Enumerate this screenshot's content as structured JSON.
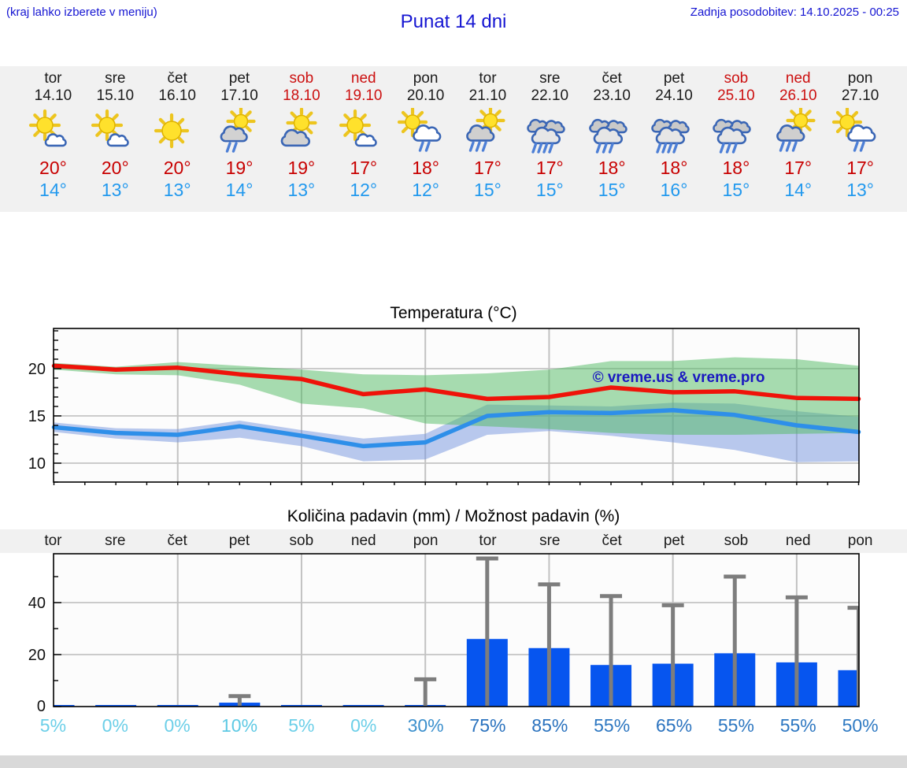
{
  "header": {
    "hint": "(kraj lahko izberete v meniju)",
    "title": "Punat 14 dni",
    "updated": "Zadnja posodobitev: 14.10.2025 - 00:25"
  },
  "colors": {
    "link_blue": "#1515d2",
    "high_red": "#c80000",
    "low_blue": "#2299ee",
    "weekend_red": "#cc1111",
    "text_black": "#1b1b1b",
    "strip_gray": "#f1f1f1",
    "bar_blue": "#0655ef",
    "whisker_gray": "#7d7d7d",
    "max_line_red": "#ef1309",
    "min_line_blue": "#2e8fe9",
    "watermark_blue": "#1a18c0"
  },
  "forecast": {
    "days": [
      {
        "name": "tor",
        "date": "14.10",
        "weekend": false,
        "icon": "sun-cloud",
        "high": "20°",
        "low": "14°"
      },
      {
        "name": "sre",
        "date": "15.10",
        "weekend": false,
        "icon": "sun-cloud",
        "high": "20°",
        "low": "13°"
      },
      {
        "name": "čet",
        "date": "16.10",
        "weekend": false,
        "icon": "sun",
        "high": "20°",
        "low": "13°"
      },
      {
        "name": "pet",
        "date": "17.10",
        "weekend": false,
        "icon": "sun-gray-cloud-rain-2",
        "high": "19°",
        "low": "14°"
      },
      {
        "name": "sob",
        "date": "18.10",
        "weekend": true,
        "icon": "sun-gray-cloud",
        "high": "19°",
        "low": "13°"
      },
      {
        "name": "ned",
        "date": "19.10",
        "weekend": true,
        "icon": "sun-cloud",
        "high": "17°",
        "low": "12°"
      },
      {
        "name": "pon",
        "date": "20.10",
        "weekend": false,
        "icon": "sun-cloud-rain-2",
        "high": "18°",
        "low": "12°"
      },
      {
        "name": "tor",
        "date": "21.10",
        "weekend": false,
        "icon": "sun-gray-cloud-rain-3",
        "high": "17°",
        "low": "15°"
      },
      {
        "name": "sre",
        "date": "22.10",
        "weekend": false,
        "icon": "clouds-rain-4",
        "high": "17°",
        "low": "15°"
      },
      {
        "name": "čet",
        "date": "23.10",
        "weekend": false,
        "icon": "clouds-rain-3",
        "high": "18°",
        "low": "15°"
      },
      {
        "name": "pet",
        "date": "24.10",
        "weekend": false,
        "icon": "clouds-rain-4",
        "high": "18°",
        "low": "16°"
      },
      {
        "name": "sob",
        "date": "25.10",
        "weekend": true,
        "icon": "clouds-rain-3",
        "high": "18°",
        "low": "15°"
      },
      {
        "name": "ned",
        "date": "26.10",
        "weekend": true,
        "icon": "sun-gray-cloud-rain-3",
        "high": "17°",
        "low": "14°"
      },
      {
        "name": "pon",
        "date": "27.10",
        "weekend": false,
        "icon": "sun-cloud-rain-2",
        "high": "17°",
        "low": "13°"
      }
    ]
  },
  "chart_data": [
    {
      "type": "line",
      "title": "Temperatura (°C)",
      "categories": [
        "tor 14.10",
        "sre 15.10",
        "čet 16.10",
        "pet 17.10",
        "sob 18.10",
        "ned 19.10",
        "pon 20.10",
        "tor 21.10",
        "sre 22.10",
        "čet 23.10",
        "pet 24.10",
        "sob 25.10",
        "ned 26.10",
        "pon 27.10"
      ],
      "series": [
        {
          "name": "max temperatura",
          "color": "#ef1309",
          "values": [
            20.3,
            19.9,
            20.1,
            19.4,
            18.9,
            17.3,
            17.8,
            16.8,
            17.0,
            18.0,
            17.5,
            17.6,
            16.9,
            16.8
          ]
        },
        {
          "name": "min temperatura",
          "color": "#2e8fe9",
          "values": [
            13.8,
            13.2,
            13.0,
            13.9,
            12.9,
            11.8,
            12.2,
            15.0,
            15.4,
            15.3,
            15.6,
            15.1,
            14.0,
            13.3
          ]
        }
      ],
      "bands": [
        {
          "name": "max razpon",
          "color": "rgba(79,185,97,0.5)",
          "upper": [
            20.6,
            20.2,
            20.7,
            20.3,
            19.9,
            19.4,
            19.3,
            19.5,
            19.9,
            20.8,
            20.8,
            21.2,
            21.0,
            20.3
          ],
          "lower": [
            19.9,
            19.4,
            19.3,
            18.3,
            16.3,
            15.8,
            14.2,
            13.9,
            13.6,
            13.2,
            13.0,
            13.0,
            13.1,
            13.2
          ]
        },
        {
          "name": "min razpon",
          "color": "rgba(115,147,221,0.5)",
          "upper": [
            14.3,
            13.7,
            13.6,
            14.5,
            13.5,
            12.6,
            13.1,
            16.2,
            16.1,
            16.0,
            16.4,
            16.3,
            15.5,
            14.9
          ],
          "lower": [
            13.3,
            12.6,
            12.2,
            12.7,
            11.8,
            10.2,
            10.4,
            13.0,
            13.4,
            12.9,
            12.2,
            11.4,
            10.1,
            10.2
          ]
        }
      ],
      "ylim": [
        8,
        24.25
      ],
      "yticks": [
        10,
        15,
        20
      ],
      "grid_day_indices": [
        2,
        4,
        6,
        8,
        10,
        12
      ],
      "grid": true,
      "legend": "none",
      "watermark": "© vreme.us & vreme.pro"
    },
    {
      "type": "bar",
      "title": "Količina padavin (mm) / Možnost padavin (%)",
      "categories": [
        "tor",
        "sre",
        "čet",
        "pet",
        "sob",
        "ned",
        "pon",
        "tor",
        "sre",
        "čet",
        "pet",
        "sob",
        "ned",
        "pon"
      ],
      "values": [
        0.2,
        0.2,
        0.2,
        1.5,
        0.2,
        0.2,
        0.5,
        26,
        22.5,
        16,
        16.5,
        20.5,
        17,
        14
      ],
      "whisker_max": [
        null,
        null,
        null,
        4,
        null,
        null,
        10.5,
        57,
        47,
        42.5,
        39,
        50,
        42,
        38
      ],
      "probabilities": [
        "5%",
        "0%",
        "0%",
        "10%",
        "5%",
        "0%",
        "30%",
        "75%",
        "85%",
        "55%",
        "65%",
        "55%",
        "55%",
        "50%"
      ],
      "probability_colors": [
        "#6ccfe8",
        "#6ccfe8",
        "#6ccfe8",
        "#5ec9e4",
        "#6ccfe8",
        "#6ccfe8",
        "#3c90cd",
        "#2a72be",
        "#2a72be",
        "#2d77c1",
        "#2b73bf",
        "#2d77c1",
        "#2d77c1",
        "#2f7ac3"
      ],
      "ylim": [
        0,
        58.8
      ],
      "yticks": [
        0,
        20,
        40
      ],
      "grid_day_indices": [
        2,
        4,
        6,
        8,
        10,
        12
      ],
      "grid": true,
      "legend": "none"
    }
  ]
}
